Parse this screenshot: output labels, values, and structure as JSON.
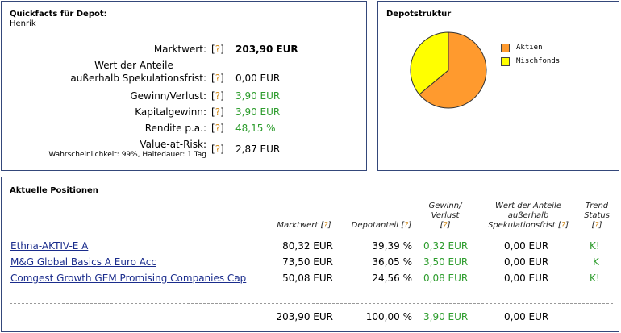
{
  "quickfacts": {
    "title": "Quickfacts für Depot:",
    "owner": "Henrik",
    "help": "[?]",
    "help_open": "[",
    "help_q": "?",
    "help_close": "]",
    "rows": [
      {
        "label": "Marktwert:",
        "value": "203,90 EUR"
      },
      {
        "label_line1": "Wert der Anteile",
        "label_line2": "außerhalb Spekulationsfrist:",
        "value": "0,00 EUR"
      },
      {
        "label": "Gewinn/Verlust:",
        "value": "3,90 EUR"
      },
      {
        "label": "Kapitalgewinn:",
        "value": "3,90 EUR"
      },
      {
        "label": "Rendite p.a.:",
        "value": "48,15 %"
      },
      {
        "label": "Value-at-Risk:",
        "sublabel": "Wahrscheinlichkeit: 99%, Haltedauer: 1 Tag",
        "value": "2,87 EUR"
      }
    ]
  },
  "depotstruktur": {
    "title": "Depotstruktur",
    "legend": [
      {
        "label": "Aktien",
        "color": "#ff9a2e"
      },
      {
        "label": "Mischfonds",
        "color": "#ffff00"
      }
    ]
  },
  "chart_data": {
    "type": "pie",
    "labels": [
      "Aktien",
      "Mischfonds"
    ],
    "values": [
      63.95,
      36.05
    ],
    "colors": [
      "#ff9a2e",
      "#ffff00"
    ]
  },
  "positions": {
    "title": "Aktuelle Positionen",
    "headers": {
      "marktwert": "Marktwert",
      "depotanteil": "Depotanteil",
      "gewinn_line1": "Gewinn/",
      "gewinn_line2": "Verlust",
      "wert_line1": "Wert der Anteile",
      "wert_line2": "außerhalb",
      "wert_line3": "Spekulationsfrist",
      "trend_line1": "Trend",
      "trend_line2": "Status"
    },
    "rows": [
      {
        "name": "Ethna-AKTIV-E A",
        "marktwert": "80,32 EUR",
        "anteil": "39,39 %",
        "gewinn": "0,32 EUR",
        "wert": "0,00 EUR",
        "trend": "K!"
      },
      {
        "name": "M&G Global Basics A Euro Acc",
        "marktwert": "73,50 EUR",
        "anteil": "36,05 %",
        "gewinn": "3,50 EUR",
        "wert": "0,00 EUR",
        "trend": "K"
      },
      {
        "name": "Comgest Growth GEM Promising Companies Cap",
        "marktwert": "50,08 EUR",
        "anteil": "24,56 %",
        "gewinn": "0,08 EUR",
        "wert": "0,00 EUR",
        "trend": "K!"
      }
    ],
    "totals": {
      "marktwert": "203,90 EUR",
      "anteil": "100,00 %",
      "gewinn": "3,90 EUR",
      "wert": "0,00 EUR"
    }
  }
}
